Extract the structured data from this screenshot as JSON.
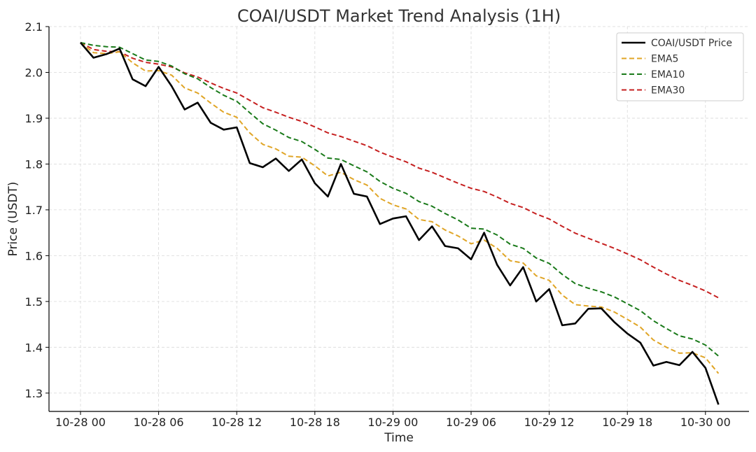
{
  "chart_data": {
    "type": "line",
    "title": "COAI/USDT Market Trend Analysis (1H)",
    "xlabel": "Time",
    "ylabel": "Price (USDT)",
    "x_start_label": "10-28 00",
    "x_tick_labels": [
      "10-28 00",
      "10-28 06",
      "10-28 12",
      "10-28 18",
      "10-29 00",
      "10-29 06",
      "10-29 12",
      "10-29 18",
      "10-30 00"
    ],
    "y_ticks": [
      "1.3",
      "1.4",
      "1.5",
      "1.6",
      "1.7",
      "1.8",
      "1.9",
      "2.0",
      "2.1"
    ],
    "ylim": [
      1.26,
      2.1
    ],
    "grid": true,
    "legend_position": "top-right",
    "series": [
      {
        "name": "COAI/USDT Price",
        "color": "#000000",
        "dashed": false,
        "values": [
          2.065,
          2.032,
          2.04,
          2.052,
          1.985,
          1.97,
          2.012,
          1.97,
          1.919,
          1.934,
          1.89,
          1.875,
          1.88,
          1.802,
          1.793,
          1.812,
          1.785,
          1.81,
          1.758,
          1.729,
          1.8,
          1.735,
          1.729,
          1.669,
          1.681,
          1.686,
          1.634,
          1.664,
          1.621,
          1.616,
          1.592,
          1.65,
          1.58,
          1.535,
          1.575,
          1.5,
          1.527,
          1.448,
          1.452,
          1.484,
          1.485,
          1.455,
          1.43,
          1.41,
          1.36,
          1.368,
          1.361,
          1.39,
          1.355,
          1.275
        ]
      },
      {
        "name": "EMA5",
        "color": "#e0a526",
        "dashed": true,
        "values": [
          2.065,
          2.043,
          2.041,
          2.045,
          2.021,
          2.003,
          2.004,
          1.994,
          1.966,
          1.955,
          1.933,
          1.913,
          1.902,
          1.868,
          1.843,
          1.833,
          1.817,
          1.815,
          1.796,
          1.774,
          1.782,
          1.766,
          1.754,
          1.725,
          1.711,
          1.702,
          1.679,
          1.674,
          1.656,
          1.643,
          1.626,
          1.634,
          1.616,
          1.589,
          1.584,
          1.556,
          1.546,
          1.514,
          1.493,
          1.49,
          1.488,
          1.477,
          1.461,
          1.444,
          1.416,
          1.4,
          1.387,
          1.388,
          1.377,
          1.343
        ]
      },
      {
        "name": "EMA10",
        "color": "#1a7a1a",
        "dashed": true,
        "values": [
          2.065,
          2.059,
          2.056,
          2.055,
          2.041,
          2.027,
          2.024,
          2.014,
          1.997,
          1.986,
          1.967,
          1.95,
          1.937,
          1.912,
          1.888,
          1.874,
          1.858,
          1.849,
          1.832,
          1.813,
          1.81,
          1.796,
          1.783,
          1.762,
          1.747,
          1.736,
          1.718,
          1.708,
          1.692,
          1.678,
          1.66,
          1.658,
          1.645,
          1.625,
          1.616,
          1.595,
          1.583,
          1.559,
          1.539,
          1.529,
          1.521,
          1.51,
          1.495,
          1.48,
          1.458,
          1.441,
          1.425,
          1.418,
          1.405,
          1.381
        ]
      },
      {
        "name": "EMA30",
        "color": "#c62020",
        "dashed": true,
        "values": [
          2.065,
          2.05,
          2.046,
          2.045,
          2.031,
          2.022,
          2.018,
          2.012,
          1.999,
          1.99,
          1.977,
          1.965,
          1.955,
          1.939,
          1.923,
          1.913,
          1.902,
          1.893,
          1.881,
          1.868,
          1.86,
          1.85,
          1.84,
          1.826,
          1.815,
          1.805,
          1.791,
          1.782,
          1.77,
          1.758,
          1.747,
          1.74,
          1.728,
          1.714,
          1.705,
          1.691,
          1.68,
          1.664,
          1.649,
          1.638,
          1.627,
          1.616,
          1.604,
          1.591,
          1.575,
          1.56,
          1.546,
          1.535,
          1.523,
          1.508
        ]
      }
    ]
  }
}
